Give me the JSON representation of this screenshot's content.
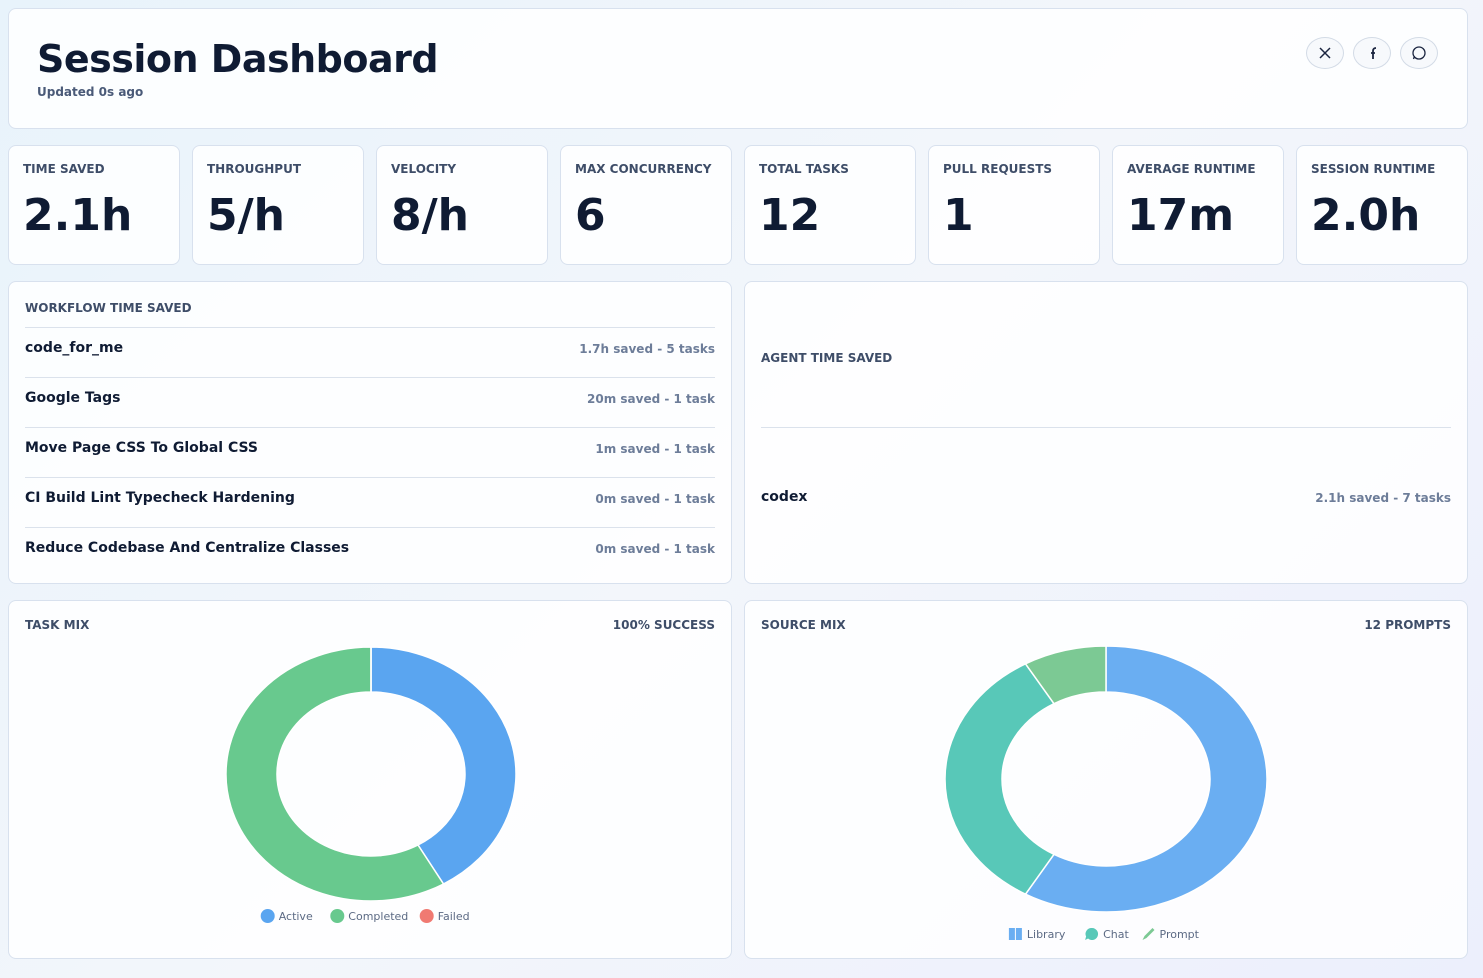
{
  "header": {
    "title": "Session Dashboard",
    "updated": "Updated 0s ago"
  },
  "stats": [
    {
      "label": "TIME SAVED",
      "value": "2.1h"
    },
    {
      "label": "THROUGHPUT",
      "value": "5/h"
    },
    {
      "label": "VELOCITY",
      "value": "8/h"
    },
    {
      "label": "MAX CONCURRENCY",
      "value": "6"
    },
    {
      "label": "TOTAL TASKS",
      "value": "12"
    },
    {
      "label": "PULL REQUESTS",
      "value": "1"
    },
    {
      "label": "AVERAGE RUNTIME",
      "value": "17m"
    },
    {
      "label": "SESSION RUNTIME",
      "value": "2.0h"
    }
  ],
  "workflow": {
    "title": "WORKFLOW TIME SAVED",
    "rows": [
      {
        "name": "code_for_me",
        "detail": "1.7h saved - 5 tasks"
      },
      {
        "name": "Google Tags",
        "detail": "20m saved - 1 task"
      },
      {
        "name": "Move Page CSS To Global CSS",
        "detail": "1m saved - 1 task"
      },
      {
        "name": "CI Build Lint Typecheck Hardening",
        "detail": "0m saved - 1 task"
      },
      {
        "name": "Reduce Codebase And Centralize Classes",
        "detail": "0m saved - 1 task"
      }
    ]
  },
  "agents": {
    "title": "AGENT TIME SAVED",
    "rows": [
      {
        "name": "codex",
        "detail": "2.1h saved - 7 tasks"
      }
    ]
  },
  "chart_data": [
    {
      "type": "pie",
      "title": "TASK MIX",
      "badge": "100% SUCCESS",
      "categories": [
        "Active",
        "Completed",
        "Failed"
      ],
      "values": [
        5,
        7,
        0
      ],
      "colors": [
        "#5aa5f0",
        "#68c98e",
        "#f07a72"
      ]
    },
    {
      "type": "pie",
      "title": "SOURCE MIX",
      "badge": "12 PROMPTS",
      "categories": [
        "Library",
        "Chat",
        "Prompt"
      ],
      "values": [
        7,
        4,
        1
      ],
      "colors": [
        "#6aaef2",
        "#58c8b8",
        "#7cc994"
      ]
    }
  ]
}
